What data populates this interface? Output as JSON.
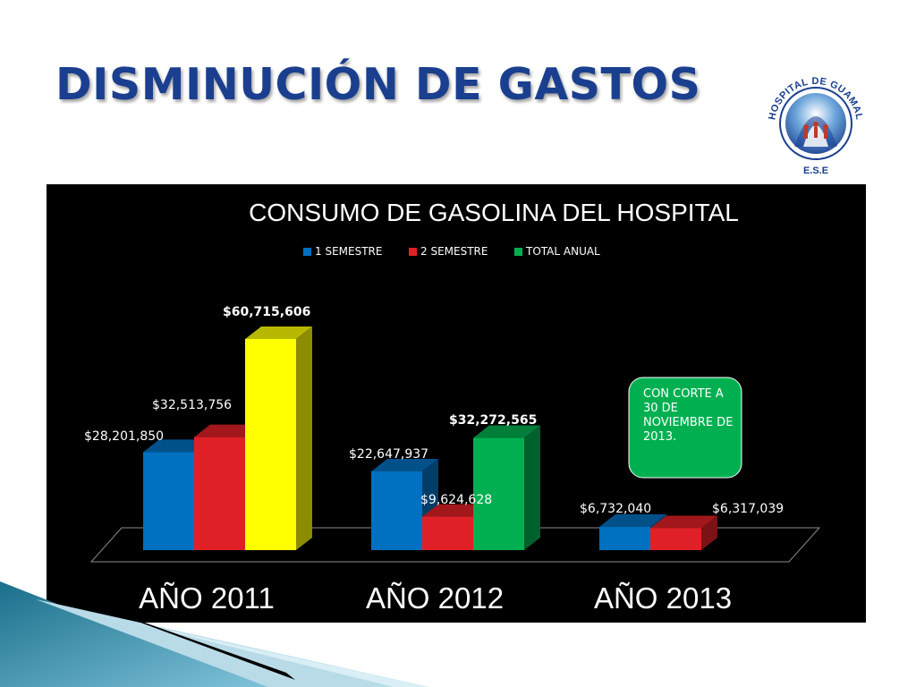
{
  "slide": {
    "title": "DISMINUCIÓN DE GASTOS",
    "logo_text": "HOSPITAL DE GUAMAL",
    "logo_subtext": "E.S.E"
  },
  "chart_data": {
    "type": "bar",
    "title": "CONSUMO DE GASOLINA DEL HOSPITAL",
    "categories": [
      "AÑO 2011",
      "AÑO 2012",
      "AÑO 2013"
    ],
    "series": [
      {
        "name": "1 SEMESTRE",
        "color": "#0070c0",
        "values": [
          28201850,
          22647937,
          6732040
        ]
      },
      {
        "name": "2 SEMESTRE",
        "color": "#e02027",
        "values": [
          32513756,
          9624628,
          6317039
        ]
      },
      {
        "name": "TOTAL ANUAL",
        "color_2011": "#ffff00",
        "color": "#00b050",
        "values": [
          60715606,
          32272565,
          null
        ]
      }
    ],
    "data_labels": [
      [
        "$28,201,850",
        "$32,513,756",
        "$60,715,606"
      ],
      [
        "$22,647,937",
        "$9,624,628",
        "$32,272,565"
      ],
      [
        "$6,732,040",
        "$6,317,039",
        ""
      ]
    ],
    "legend_position": "top",
    "ylim": [
      0,
      65000000
    ],
    "grid": false,
    "three_d": true,
    "annotation": "CON CORTE A 30 DE NOVIEMBRE DE 2013."
  }
}
